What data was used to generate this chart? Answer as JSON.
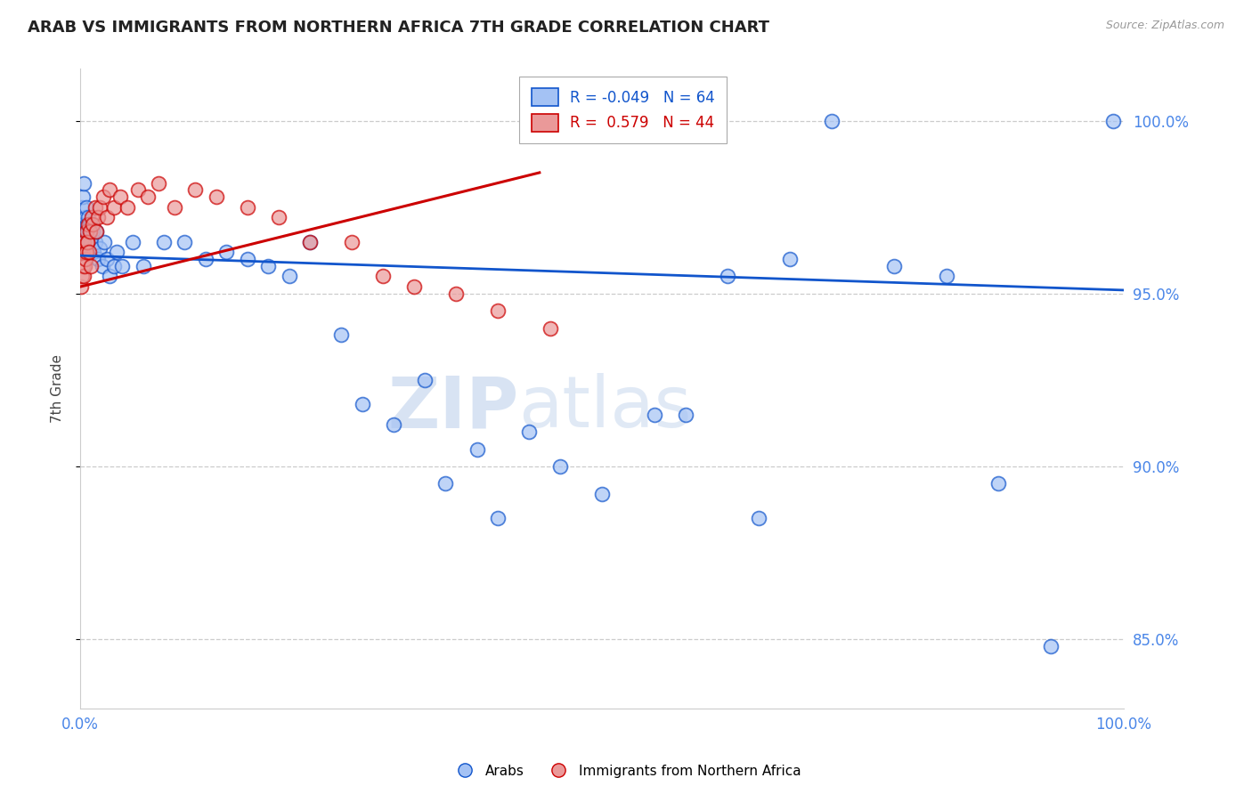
{
  "title": "ARAB VS IMMIGRANTS FROM NORTHERN AFRICA 7TH GRADE CORRELATION CHART",
  "source": "Source: ZipAtlas.com",
  "ylabel": "7th Grade",
  "xlim": [
    0.0,
    100.0
  ],
  "ylim": [
    83.0,
    101.5
  ],
  "yticks": [
    85.0,
    90.0,
    95.0,
    100.0
  ],
  "xticks": [
    0.0,
    100.0
  ],
  "xticklabels": [
    "0.0%",
    "100.0%"
  ],
  "yticklabels": [
    "85.0%",
    "90.0%",
    "95.0%",
    "100.0%"
  ],
  "legend_r_blue": "-0.049",
  "legend_n_blue": "64",
  "legend_r_pink": "0.579",
  "legend_n_pink": "44",
  "blue_color": "#a4c2f4",
  "pink_color": "#ea9999",
  "blue_line_color": "#1155cc",
  "pink_line_color": "#cc0000",
  "tick_label_color": "#4a86e8",
  "watermark_zip": "ZIP",
  "watermark_atlas": "atlas",
  "blue_x": [
    0.1,
    0.15,
    0.2,
    0.25,
    0.3,
    0.35,
    0.4,
    0.45,
    0.5,
    0.55,
    0.6,
    0.65,
    0.7,
    0.75,
    0.8,
    0.85,
    0.9,
    0.95,
    1.0,
    1.1,
    1.2,
    1.3,
    1.4,
    1.5,
    1.7,
    1.9,
    2.1,
    2.3,
    2.5,
    2.8,
    3.2,
    3.5,
    4.0,
    5.0,
    6.0,
    8.0,
    10.0,
    12.0,
    14.0,
    16.0,
    18.0,
    20.0,
    22.0,
    25.0,
    27.0,
    30.0,
    33.0,
    35.0,
    38.0,
    40.0,
    43.0,
    46.0,
    50.0,
    55.0,
    58.0,
    62.0,
    65.0,
    68.0,
    72.0,
    78.0,
    83.0,
    88.0,
    93.0,
    99.0
  ],
  "blue_y": [
    96.8,
    97.5,
    96.2,
    97.8,
    97.0,
    98.2,
    96.5,
    97.2,
    96.8,
    97.5,
    96.4,
    97.0,
    96.8,
    97.2,
    96.5,
    96.2,
    97.0,
    96.8,
    96.5,
    96.3,
    96.8,
    96.2,
    96.5,
    96.8,
    96.0,
    96.3,
    95.8,
    96.5,
    96.0,
    95.5,
    95.8,
    96.2,
    95.8,
    96.5,
    95.8,
    96.5,
    96.5,
    96.0,
    96.2,
    96.0,
    95.8,
    95.5,
    96.5,
    93.8,
    91.8,
    91.2,
    92.5,
    89.5,
    90.5,
    88.5,
    91.0,
    90.0,
    89.2,
    91.5,
    91.5,
    95.5,
    88.5,
    96.0,
    100.0,
    95.8,
    95.5,
    89.5,
    84.8,
    100.0
  ],
  "pink_x": [
    0.1,
    0.15,
    0.2,
    0.25,
    0.3,
    0.35,
    0.4,
    0.45,
    0.5,
    0.55,
    0.6,
    0.65,
    0.7,
    0.75,
    0.8,
    0.9,
    1.0,
    1.1,
    1.2,
    1.4,
    1.5,
    1.7,
    1.9,
    2.2,
    2.5,
    2.8,
    3.2,
    3.8,
    4.5,
    5.5,
    6.5,
    7.5,
    9.0,
    11.0,
    13.0,
    16.0,
    19.0,
    22.0,
    26.0,
    29.0,
    32.0,
    36.0,
    40.0,
    45.0
  ],
  "pink_y": [
    95.2,
    95.5,
    95.8,
    96.2,
    95.5,
    96.5,
    95.8,
    96.2,
    96.0,
    96.8,
    96.2,
    96.5,
    96.5,
    97.0,
    96.2,
    96.8,
    95.8,
    97.2,
    97.0,
    97.5,
    96.8,
    97.2,
    97.5,
    97.8,
    97.2,
    98.0,
    97.5,
    97.8,
    97.5,
    98.0,
    97.8,
    98.2,
    97.5,
    98.0,
    97.8,
    97.5,
    97.2,
    96.5,
    96.5,
    95.5,
    95.2,
    95.0,
    94.5,
    94.0
  ]
}
